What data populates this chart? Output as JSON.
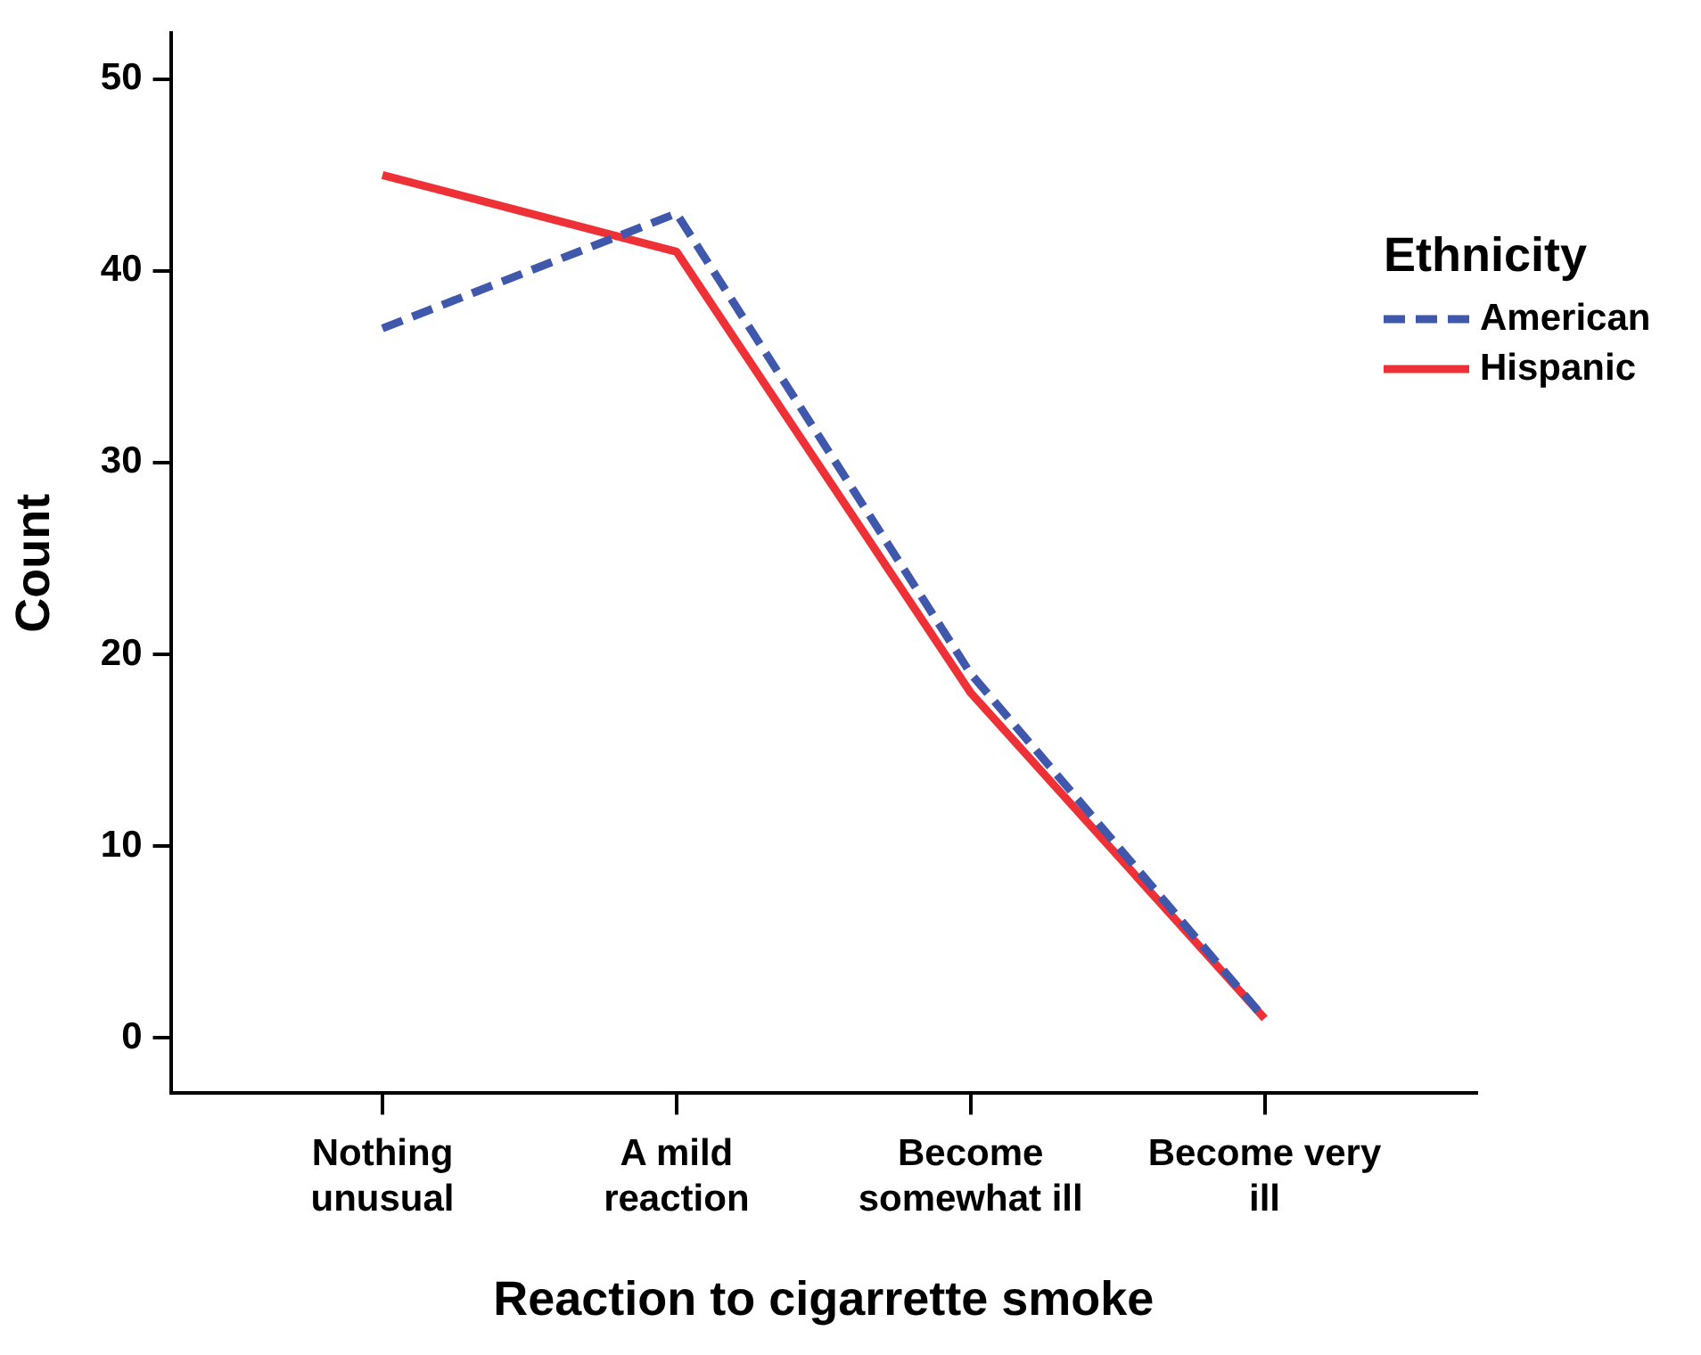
{
  "chart_data": {
    "type": "line",
    "xlabel": "Reaction to cigarrette smoke",
    "ylabel": "Count",
    "legend_title": "Ethnicity",
    "legend": "right",
    "categories": [
      "Nothing unusual",
      "A mild reaction",
      "Become somewhat ill",
      "Become very ill"
    ],
    "series": [
      {
        "name": "American",
        "color": "#3f58ac",
        "values": [
          37,
          43,
          19,
          1
        ],
        "line_style": "dashed"
      },
      {
        "name": "Hispanic",
        "color": "#ee3137",
        "values": [
          45,
          41,
          18,
          1
        ],
        "line_style": "solid"
      }
    ],
    "ylim": [
      -2.9,
      52.4
    ],
    "yticks": [
      0,
      10,
      20,
      30,
      40,
      50
    ],
    "grid": false,
    "marker": "none"
  }
}
